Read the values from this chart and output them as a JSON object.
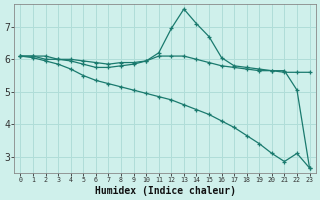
{
  "xlabel": "Humidex (Indice chaleur)",
  "x_labels": [
    "0",
    "1",
    "2",
    "3",
    "4",
    "5",
    "6",
    "7",
    "8",
    "9",
    "10",
    "11",
    "12",
    "13",
    "14",
    "15",
    "16",
    "17",
    "18",
    "19",
    "20",
    "21",
    "22",
    "23"
  ],
  "series": [
    {
      "x": [
        0,
        1,
        2,
        3,
        4,
        5,
        6,
        7,
        8,
        9,
        10,
        11,
        12,
        13,
        14,
        15,
        16,
        17,
        18,
        19,
        20,
        21,
        22,
        23
      ],
      "y": [
        6.1,
        6.1,
        6.1,
        6.0,
        6.0,
        5.95,
        5.9,
        5.85,
        5.9,
        5.9,
        5.95,
        6.1,
        6.1,
        6.1,
        6.0,
        5.9,
        5.8,
        5.75,
        5.7,
        5.65,
        5.65,
        5.6,
        5.6,
        5.6
      ]
    },
    {
      "x": [
        0,
        1,
        2,
        3,
        4,
        5,
        6,
        7,
        8,
        9,
        10,
        11,
        12,
        13,
        14,
        15,
        16,
        17,
        18,
        19,
        20,
        21,
        22,
        23
      ],
      "y": [
        6.1,
        6.1,
        6.0,
        6.0,
        5.95,
        5.85,
        5.75,
        5.75,
        5.8,
        5.85,
        5.95,
        6.2,
        6.95,
        7.55,
        7.1,
        6.7,
        6.05,
        5.8,
        5.75,
        5.7,
        5.65,
        5.65,
        5.05,
        2.65
      ]
    },
    {
      "x": [
        0,
        1,
        2,
        3,
        4,
        5,
        6,
        7,
        8,
        9,
        10,
        11,
        12,
        13,
        14,
        15,
        16,
        17,
        18,
        19,
        20,
        21,
        22,
        23
      ],
      "y": [
        6.1,
        6.05,
        5.95,
        5.85,
        5.7,
        5.5,
        5.35,
        5.25,
        5.15,
        5.05,
        4.95,
        4.85,
        4.75,
        4.6,
        4.45,
        4.3,
        4.1,
        3.9,
        3.65,
        3.4,
        3.1,
        2.85,
        3.1,
        2.65
      ]
    }
  ],
  "color": "#1a7a6e",
  "bg_color": "#cff0eb",
  "grid_color": "#b0ddd8",
  "ylim": [
    2.5,
    7.7
  ],
  "xlim": [
    -0.5,
    23.5
  ],
  "yticks": [
    3,
    4,
    5,
    6,
    7
  ],
  "figsize": [
    3.2,
    2.0
  ],
  "dpi": 100
}
